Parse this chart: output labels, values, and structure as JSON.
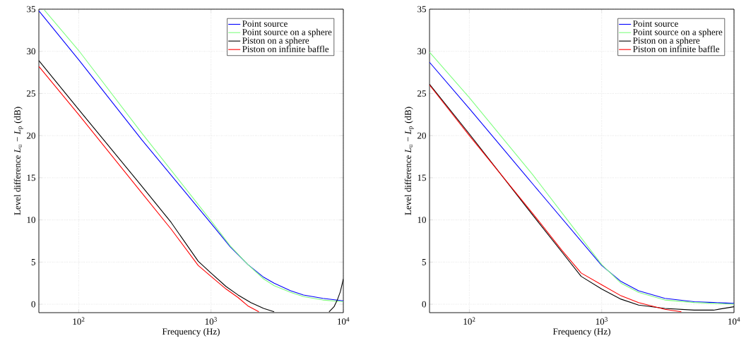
{
  "chart_data": [
    {
      "type": "line",
      "xlabel": "Frequency (Hz)",
      "ylabel": "Level difference  *L*$_{u}$ − *L*$_{p}$  (dB)",
      "log": "x",
      "grid": true,
      "legend": "top right",
      "marker": "none",
      "line_style": "solid",
      "xlim": [
        50,
        10000
      ],
      "ylim": [
        -1,
        35
      ],
      "xticks": [
        {
          "value": 100,
          "label": "10$^{2}$"
        },
        {
          "value": 1000,
          "label": "10$^{3}$"
        },
        {
          "value": 10000,
          "label": "10$^{4}$"
        }
      ],
      "yticks": [
        0,
        5,
        10,
        15,
        20,
        25,
        30,
        35
      ],
      "series": [
        {
          "name": "Point source",
          "color": "#0000ff",
          "x": [
            50,
            100,
            300,
            1000,
            1400,
            1900,
            2500,
            3000,
            4000,
            5000,
            7000,
            10000
          ],
          "values": [
            34.8,
            29.0,
            19.5,
            9.6,
            6.8,
            4.7,
            3.2,
            2.5,
            1.6,
            1.1,
            0.7,
            0.4
          ]
        },
        {
          "name": "Point source on a sphere",
          "color": "#80ff80",
          "x": [
            55,
            100,
            300,
            1000,
            1400,
            1900,
            2500,
            3000,
            4000,
            5000,
            7000,
            10000
          ],
          "values": [
            34.9,
            30.1,
            20.3,
            9.9,
            6.9,
            4.7,
            3.0,
            2.2,
            1.4,
            0.9,
            0.5,
            0.3
          ]
        },
        {
          "name": "Piston on a sphere",
          "color": "#000000",
          "x": [
            50,
            100,
            300,
            500,
            800,
            1000,
            1300,
            1600,
            2000,
            2500,
            3000,
            5000,
            7800,
            8500,
            9000,
            9500,
            10000
          ],
          "values": [
            28.9,
            23.1,
            14.0,
            9.7,
            5.1,
            3.7,
            2.1,
            1.1,
            0.2,
            -0.5,
            -0.9,
            null,
            -0.9,
            -0.3,
            0.5,
            1.5,
            3.0
          ]
        },
        {
          "name": "Piston on infinite baffle",
          "color": "#ff0000",
          "x": [
            50,
            100,
            300,
            500,
            800,
            1000,
            1300,
            1600,
            1900,
            2300
          ],
          "values": [
            28.2,
            22.5,
            13.2,
            8.9,
            4.6,
            3.3,
            1.8,
            0.8,
            -0.2,
            -0.9
          ]
        }
      ]
    },
    {
      "type": "line",
      "xlabel": "Frequency (Hz)",
      "ylabel": "Level difference  *L*$_{u}$ − *L*$_{p}$  (dB)",
      "log": "x",
      "grid": true,
      "legend": "top right",
      "marker": "none",
      "line_style": "solid",
      "xlim": [
        50,
        10000
      ],
      "ylim": [
        -1,
        35
      ],
      "xticks": [
        {
          "value": 100,
          "label": "10$^{2}$"
        },
        {
          "value": 1000,
          "label": "10$^{3}$"
        },
        {
          "value": 10000,
          "label": "10$^{4}$"
        }
      ],
      "yticks": [
        0,
        5,
        10,
        15,
        20,
        25,
        30,
        35
      ],
      "series": [
        {
          "name": "Point source",
          "color": "#0000ff",
          "x": [
            50,
            100,
            300,
            1000,
            1400,
            1900,
            3000,
            5000,
            7000,
            10000
          ],
          "values": [
            28.7,
            23.2,
            14.3,
            4.6,
            2.7,
            1.6,
            0.7,
            0.3,
            0.2,
            0.1
          ]
        },
        {
          "name": "Point source on a sphere",
          "color": "#80ff80",
          "x": [
            50,
            100,
            300,
            1000,
            1400,
            1900,
            3000,
            5000,
            7000,
            10000
          ],
          "values": [
            29.9,
            24.5,
            15.4,
            4.7,
            2.5,
            1.4,
            0.5,
            0.2,
            0.1,
            0
          ]
        },
        {
          "name": "Piston on a sphere",
          "color": "#000000",
          "x": [
            50,
            100,
            300,
            500,
            700,
            1000,
            1400,
            1900,
            3000,
            5000,
            7000,
            10000
          ],
          "values": [
            26.1,
            20.2,
            10.6,
            6.2,
            3.3,
            1.8,
            0.6,
            -0.1,
            -0.5,
            -0.7,
            -0.7,
            -0.3
          ]
        },
        {
          "name": "Piston on infinite baffle",
          "color": "#ff0000",
          "x": [
            50,
            100,
            300,
            500,
            700,
            1000,
            1400,
            1900,
            3000,
            4000
          ],
          "values": [
            26.0,
            20.0,
            10.8,
            6.4,
            3.7,
            2.3,
            1.0,
            0.2,
            -0.6,
            -0.9
          ]
        }
      ]
    }
  ]
}
